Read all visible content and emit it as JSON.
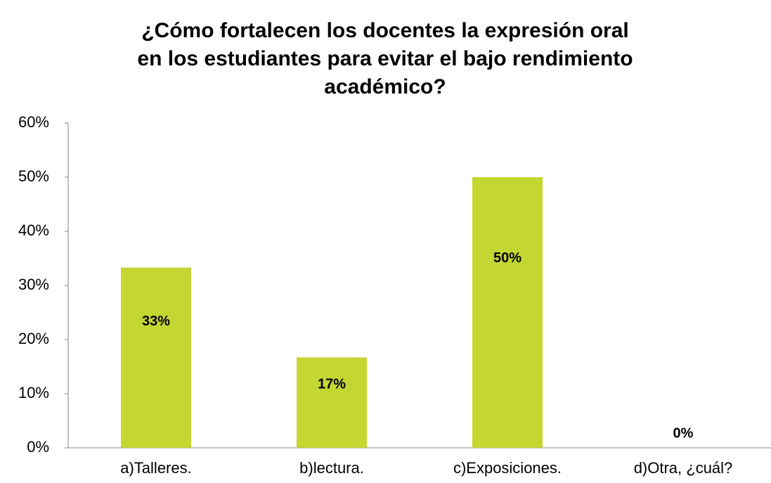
{
  "chart_data": {
    "type": "bar",
    "title": [
      "¿Cómo fortalecen los docentes la expresión oral",
      "en los estudiantes para evitar el bajo rendimiento",
      "académico?"
    ],
    "categories": [
      "a)Talleres.",
      "b)lectura.",
      "c)Exposiciones.",
      "d)Otra, ¿cuál?"
    ],
    "values": [
      33.3,
      16.7,
      50,
      0
    ],
    "value_labels": [
      "33%",
      "17%",
      "50%",
      "0%"
    ],
    "color": "#c4d631",
    "ylim": [
      0,
      60
    ],
    "yticks": [
      {
        "value": 0,
        "label": "0%"
      },
      {
        "value": 10,
        "label": "10%"
      },
      {
        "value": 20,
        "label": "20%"
      },
      {
        "value": 30,
        "label": "30%"
      },
      {
        "value": 40,
        "label": "40%"
      },
      {
        "value": 50,
        "label": "50%"
      },
      {
        "value": 60,
        "label": "60%"
      }
    ],
    "grid": false
  }
}
